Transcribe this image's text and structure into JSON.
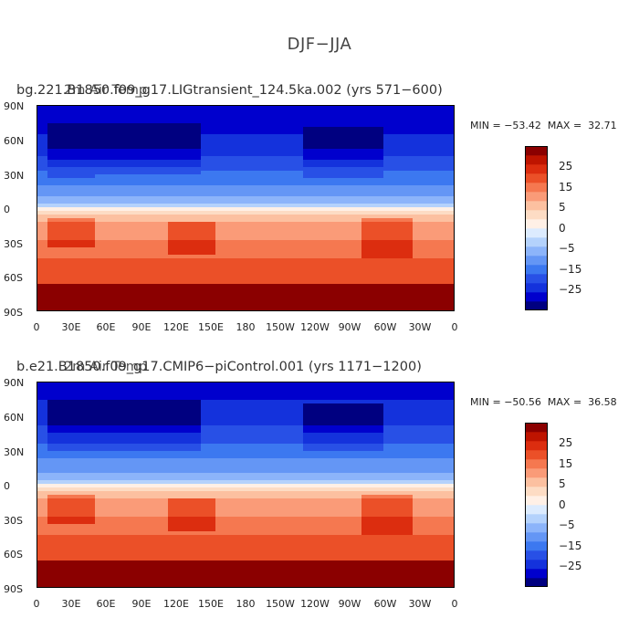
{
  "figure": {
    "title": "DJF−JJA"
  },
  "colorbar": {
    "colors": [
      "#000080",
      "#0000cd",
      "#1432dc",
      "#2850e6",
      "#3c78f0",
      "#6496f5",
      "#8cb4fa",
      "#b4d2fc",
      "#dcebfe",
      "#fff0e6",
      "#fddcc4",
      "#fcc0a0",
      "#fa9b78",
      "#f57850",
      "#eb5028",
      "#dc2d0f",
      "#be1400",
      "#8b0000"
    ],
    "labels": [
      "25",
      "15",
      "5",
      "0",
      "−5",
      "−15",
      "−25"
    ]
  },
  "axes": {
    "lat_labels": [
      "90N",
      "60N",
      "30N",
      "0",
      "30S",
      "60S",
      "90S"
    ],
    "lon_labels": [
      "0",
      "30E",
      "60E",
      "90E",
      "120E",
      "150E",
      "180",
      "150W",
      "120W",
      "90W",
      "60W",
      "30W",
      "0"
    ]
  },
  "panels": [
    {
      "title_case": "bg.221.B1850.f09_g17.LIGtransient_124.5ka.002 (yrs 571−600)",
      "title_overlay": "2m Air Temp",
      "min_label": "MIN =",
      "min_value": "−53.42",
      "max_label": "MAX =",
      "max_value": "32.71"
    },
    {
      "title_case": "b.e21.B1850.f09_g17.CMIP6−piControl.001 (yrs 1171−1200)",
      "title_overlay": "2m Air Temp",
      "min_label": "MIN =",
      "min_value": "−50.56",
      "max_label": "MAX =",
      "max_value": "36.58"
    }
  ]
}
